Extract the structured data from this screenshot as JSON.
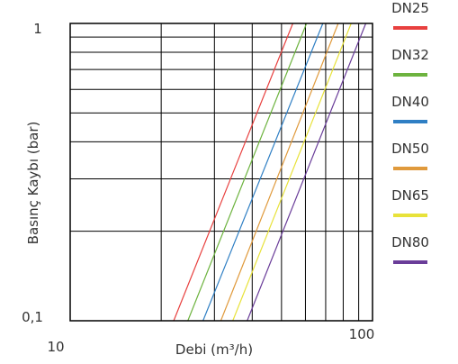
{
  "chart_data": {
    "type": "line",
    "xscale": "log",
    "yscale": "log",
    "xlim": [
      10,
      100
    ],
    "ylim": [
      0.1,
      1
    ],
    "x_ticks": [
      "10",
      "100"
    ],
    "y_ticks": [
      "0,1",
      "1"
    ],
    "xlabel": "Debi  (m³/h)",
    "ylabel": "Basınç Kaybı (bar)",
    "grid": true,
    "legend_position": "right",
    "series": [
      {
        "name": "DN25",
        "color": "#e8403f",
        "x": [
          22.0,
          54.5
        ],
        "y": [
          0.1,
          1
        ]
      },
      {
        "name": "DN32",
        "color": "#6db33f",
        "x": [
          24.5,
          60.5
        ],
        "y": [
          0.1,
          1
        ]
      },
      {
        "name": "DN40",
        "color": "#2f7fc4",
        "x": [
          27.5,
          68.5
        ],
        "y": [
          0.1,
          1
        ]
      },
      {
        "name": "DN50",
        "color": "#e09a3c",
        "x": [
          31.5,
          77.0
        ],
        "y": [
          0.1,
          1
        ]
      },
      {
        "name": "DN65",
        "color": "#e8e23a",
        "x": [
          34.5,
          85.0
        ],
        "y": [
          0.1,
          1
        ]
      },
      {
        "name": "DN80",
        "color": "#6a3d99",
        "x": [
          38.5,
          95.0
        ],
        "y": [
          0.1,
          1
        ]
      }
    ]
  }
}
